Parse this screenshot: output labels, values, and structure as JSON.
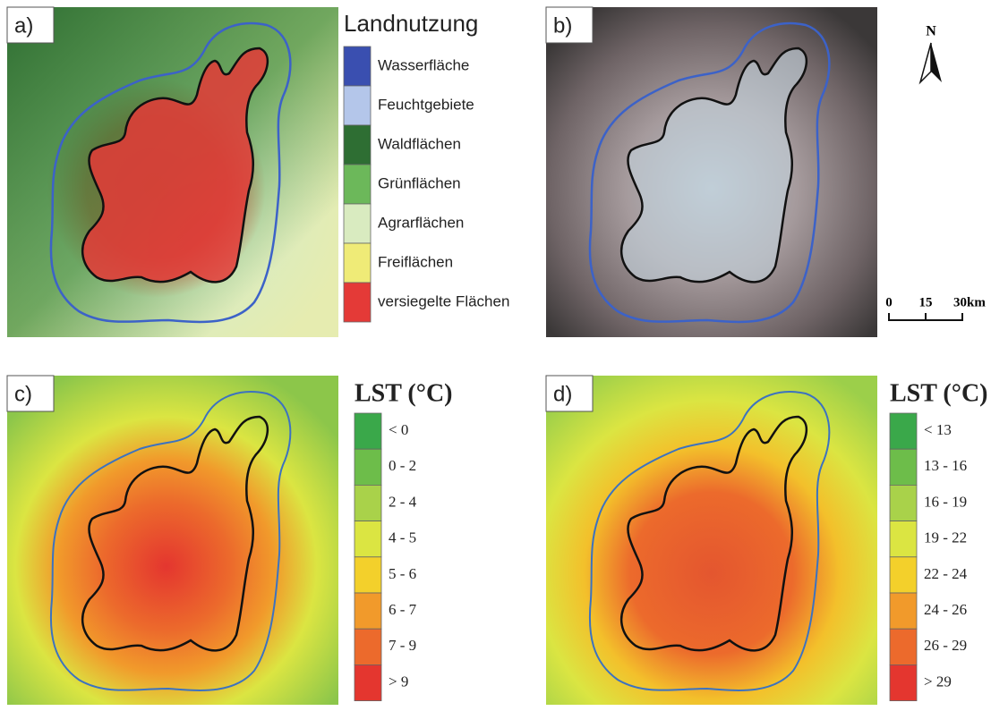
{
  "panels": [
    {
      "label": "a)"
    },
    {
      "label": "b)"
    },
    {
      "label": "c)"
    },
    {
      "label": "d)"
    }
  ],
  "landuse_legend": {
    "title": "Landnutzung",
    "items": [
      {
        "label": "Wasserfläche",
        "color": "#3a4fb0"
      },
      {
        "label": "Feuchtgebiete",
        "color": "#b4c6ea"
      },
      {
        "label": "Waldflächen",
        "color": "#2e6e33"
      },
      {
        "label": "Grünflächen",
        "color": "#6cb85a"
      },
      {
        "label": "Agrarflächen",
        "color": "#d9ebc0"
      },
      {
        "label": "Freiflächen",
        "color": "#efeb77"
      },
      {
        "label": "versiegelte Flächen",
        "color": "#e43a37"
      }
    ]
  },
  "lst_legend_c": {
    "title": "LST (°C)",
    "items": [
      {
        "label": "< 0",
        "color": "#3aa84a"
      },
      {
        "label": "0 - 2",
        "color": "#6dbd4a"
      },
      {
        "label": "2 - 4",
        "color": "#a9d24a"
      },
      {
        "label": "4 - 5",
        "color": "#dbe542"
      },
      {
        "label": "5 - 6",
        "color": "#f3d02b"
      },
      {
        "label": "6 - 7",
        "color": "#f19a2b"
      },
      {
        "label": "7 - 9",
        "color": "#ec6a2c"
      },
      {
        "label": "> 9",
        "color": "#e4362f"
      }
    ]
  },
  "lst_legend_d": {
    "title": "LST (°C)",
    "items": [
      {
        "label": "< 13",
        "color": "#3aa84a"
      },
      {
        "label": "13 - 16",
        "color": "#6dbd4a"
      },
      {
        "label": "16 - 19",
        "color": "#a9d24a"
      },
      {
        "label": "19 - 22",
        "color": "#dbe542"
      },
      {
        "label": "22 - 24",
        "color": "#f3d02b"
      },
      {
        "label": "24 - 26",
        "color": "#f19a2b"
      },
      {
        "label": "26 - 29",
        "color": "#ec6a2c"
      },
      {
        "label": "> 29",
        "color": "#e4362f"
      }
    ]
  },
  "north_arrow": {
    "label": "N"
  },
  "scale_bar": {
    "labels": [
      "0",
      "15",
      "30km"
    ]
  }
}
